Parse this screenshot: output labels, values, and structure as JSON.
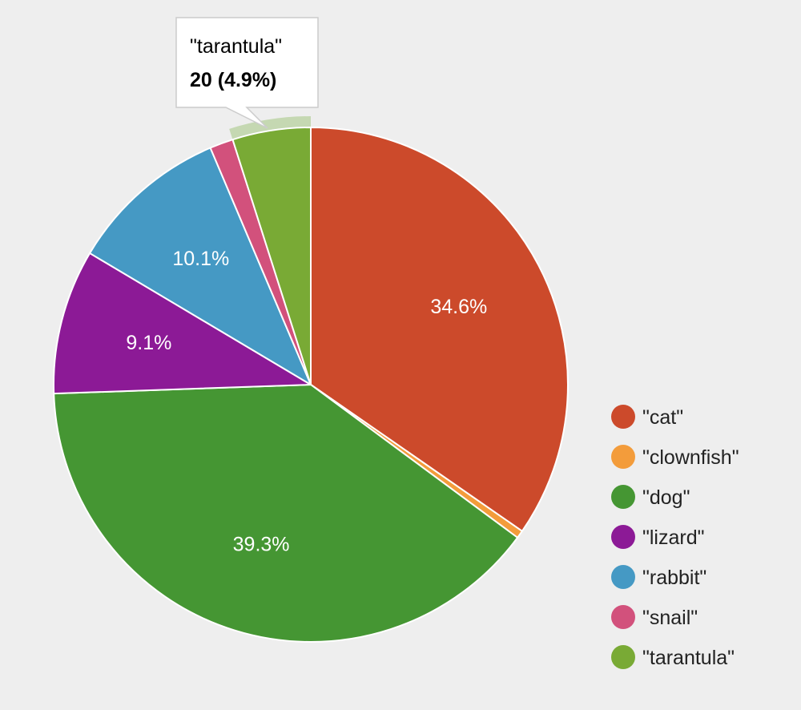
{
  "chart_data": {
    "type": "pie",
    "title": "",
    "start_angle_deg": 0,
    "direction": "clockwise",
    "legend_position": "right",
    "slices": [
      {
        "name": "\"cat\"",
        "value": 141,
        "percent_label": "34.6%",
        "color": "#cc4a2b"
      },
      {
        "name": "\"clownfish\"",
        "value": 2,
        "percent_label": "",
        "color": "#f39c3b"
      },
      {
        "name": "\"dog\"",
        "value": 160,
        "percent_label": "39.3%",
        "color": "#459633"
      },
      {
        "name": "\"lizard\"",
        "value": 37,
        "percent_label": "9.1%",
        "color": "#8c1a96"
      },
      {
        "name": "\"rabbit\"",
        "value": 41,
        "percent_label": "10.1%",
        "color": "#4599c4"
      },
      {
        "name": "\"snail\"",
        "value": 6,
        "percent_label": "",
        "color": "#d2517c"
      },
      {
        "name": "\"tarantula\"",
        "value": 20,
        "percent_label": "",
        "color": "#79aa35"
      }
    ],
    "tooltip": {
      "slice_index": 6,
      "name": "\"tarantula\"",
      "value_text": "20 (4.9%)",
      "highlight_color": "#c5d8b2"
    }
  }
}
